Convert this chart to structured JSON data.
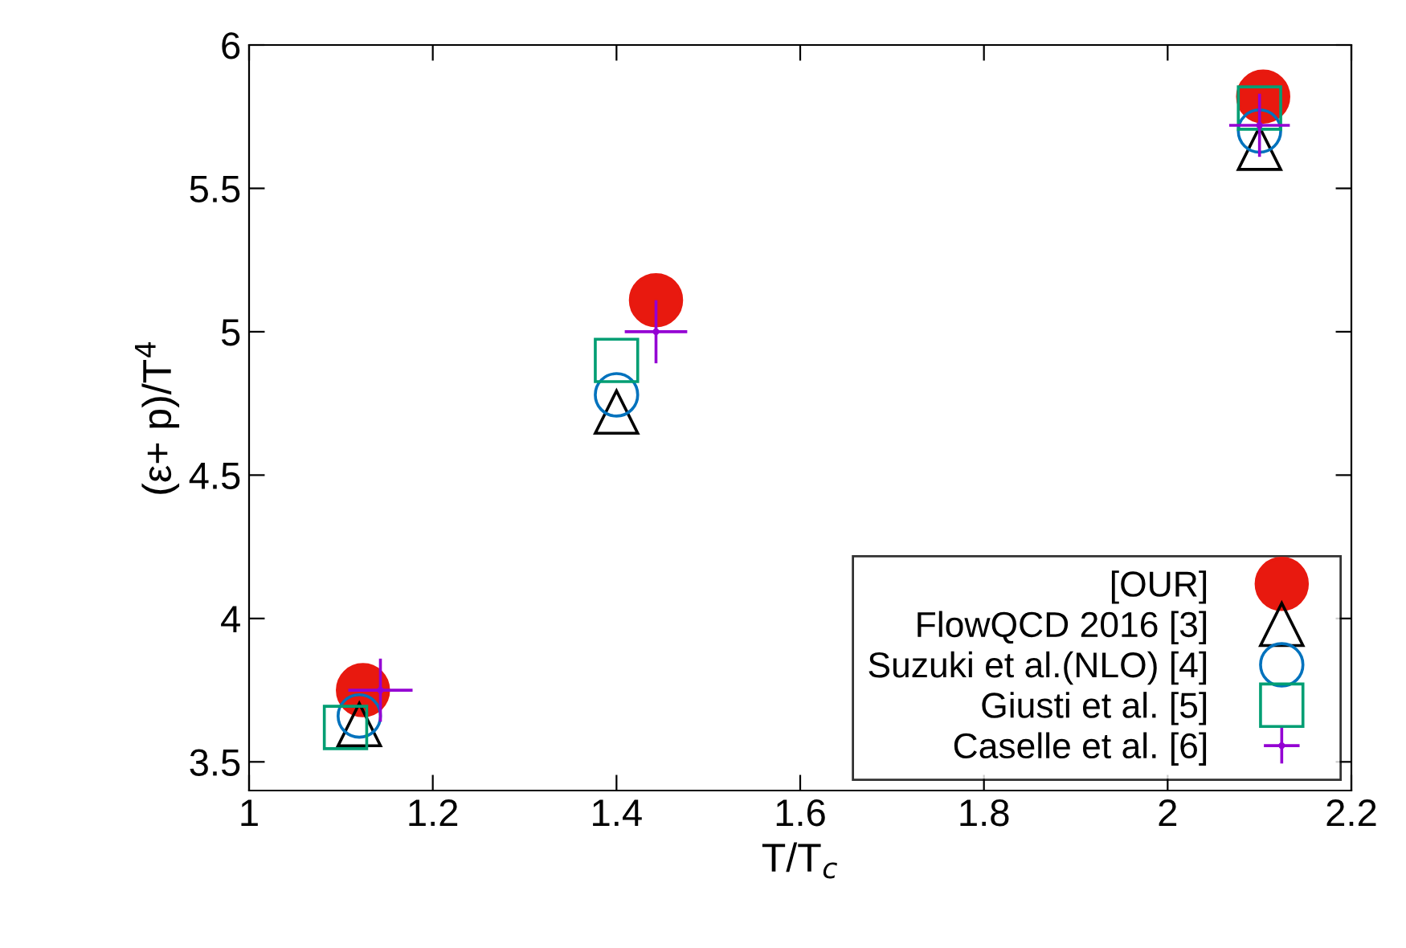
{
  "chart_data": {
    "type": "scatter",
    "xlabel": "T/T$_{c}$",
    "ylabel": "(ε+ p)/T$^{4}$",
    "xlim": [
      1,
      2.2
    ],
    "xticks": [
      1,
      1.2,
      1.4,
      1.6,
      1.8,
      2,
      2.2
    ],
    "ylim": [
      3.4,
      6
    ],
    "yticks": [
      3.5,
      4,
      4.5,
      5,
      5.5,
      6
    ],
    "grid": false,
    "legend": "bottom right",
    "series": [
      {
        "name": "[OUR]",
        "color": "#e8190f",
        "marker": "circle",
        "x": [
          1.124,
          1.443,
          2.104
        ],
        "values": [
          3.75,
          5.11,
          5.82
        ]
      },
      {
        "name": "FlowQCD 2016 [3]",
        "color": "#000000",
        "marker": "triangle",
        "x": [
          1.12,
          1.4,
          2.1
        ],
        "values": [
          3.63,
          4.72,
          5.64
        ]
      },
      {
        "name": "Suzuki et al.(NLO) [4]",
        "color": "#0072bd",
        "marker": "circle",
        "x": [
          1.12,
          1.4,
          2.1
        ],
        "values": [
          3.66,
          4.78,
          5.7
        ]
      },
      {
        "name": "Giusti et al. [5]",
        "color": "#009e73",
        "marker": "square",
        "x": [
          1.105,
          1.4,
          2.1
        ],
        "values": [
          3.62,
          4.9,
          5.78
        ]
      },
      {
        "name": "Caselle et al. [6]",
        "color": "#9400d3",
        "marker": "circle",
        "x": [
          1.143,
          1.443,
          2.1
        ],
        "values": [
          3.75,
          5.0,
          5.72
        ],
        "errors": [
          0.11,
          0.11,
          0.11
        ],
        "xerrors": [
          0.035,
          0.034,
          0.033
        ]
      }
    ]
  }
}
